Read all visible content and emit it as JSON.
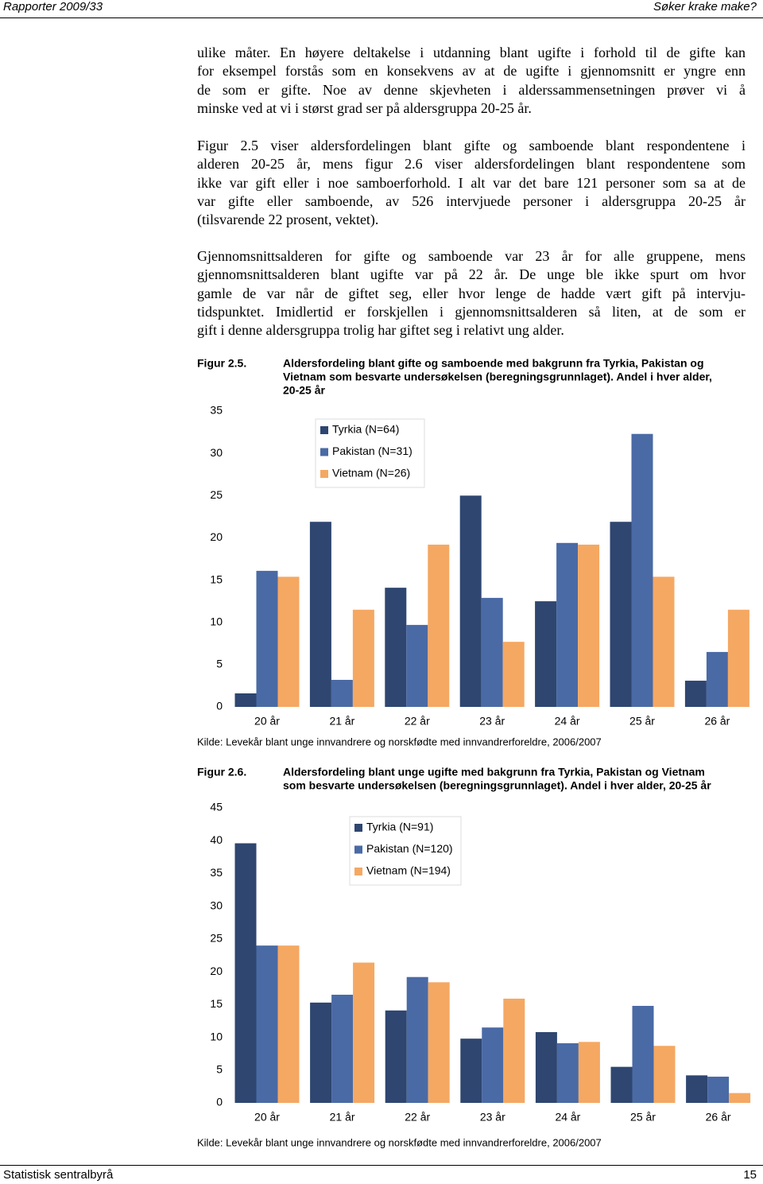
{
  "header": {
    "left": "Rapporter 2009/33",
    "right": "Søker krake make?"
  },
  "paragraphs": [
    [
      "ulike måter. En høyere deltakelse i utdanning blant ugifte i forhold til de gifte kan",
      "for eksempel forstås som en konsekvens av at de ugifte i gjennomsnitt er yngre enn",
      "de som er gifte. Noe av denne skjevheten i alderssammensetningen prøver vi å",
      "minske ved at vi i størst grad ser på aldersgruppa 20-25 år."
    ],
    [
      "Figur 2.5 viser aldersfordelingen blant gifte og samboende blant respondentene i",
      "alderen 20-25 år, mens figur 2.6 viser aldersfordelingen blant respondentene som",
      "ikke var gift eller i noe samboerforhold. I alt var det bare 121 personer som sa at de",
      "var gifte eller samboende, av 526 intervjuede personer i aldersgruppa 20-25 år",
      "(tilsvarende 22 prosent, vektet)."
    ],
    [
      "Gjennomsnittsalderen for gifte og samboende var 23 år for alle gruppene, mens",
      "gjennomsnittsalderen blant ugifte var på 22 år. De unge ble ikke spurt om hvor",
      "gamle de var når de giftet seg, eller hvor lenge de hadde vært gift på intervju-",
      "tidspunktet. Imidlertid er forskjellen i gjennomsnittsalderen så liten, at de som er",
      "gift i denne aldersgruppa trolig har giftet seg i relativt ung alder."
    ]
  ],
  "chart_data": [
    {
      "type": "bar",
      "figure_label": "Figur 2.5.",
      "title": [
        "Aldersfordeling blant gifte og samboende med bakgrunn fra Tyrkia, Pakistan og",
        "Vietnam som besvarte undersøkelsen (beregningsgrunnlaget). Andel i hver alder,",
        "20-25 år"
      ],
      "categories": [
        "20 år",
        "21 år",
        "22 år",
        "23 år",
        "24 år",
        "25 år",
        "26 år"
      ],
      "series": [
        {
          "name": "Tyrkia (N=64)",
          "color": "#2e4670",
          "values": [
            1.6,
            21.9,
            14.1,
            25.0,
            12.5,
            21.9,
            3.1
          ]
        },
        {
          "name": "Pakistan (N=31)",
          "color": "#4a6aa5",
          "values": [
            16.1,
            3.2,
            9.7,
            12.9,
            19.4,
            32.3,
            6.5
          ]
        },
        {
          "name": "Vietnam (N=26)",
          "color": "#f5a862",
          "values": [
            15.4,
            11.5,
            19.2,
            7.7,
            19.2,
            15.4,
            11.5
          ]
        }
      ],
      "ylim": [
        0,
        35
      ],
      "yticks": [
        0,
        5,
        10,
        15,
        20,
        25,
        30,
        35
      ],
      "source": "Kilde: Levekår blant unge innvandrere og norskfødte med innvandrerforeldre, 2006/2007"
    },
    {
      "type": "bar",
      "figure_label": "Figur 2.6.",
      "title": [
        "Aldersfordeling blant unge ugifte med bakgrunn fra Tyrkia, Pakistan og Vietnam",
        "som besvarte undersøkelsen (beregningsgrunnlaget). Andel i hver alder, 20-25 år"
      ],
      "categories": [
        "20 år",
        "21 år",
        "22 år",
        "23 år",
        "24 år",
        "25 år",
        "26 år"
      ],
      "series": [
        {
          "name": "Tyrkia (N=91)",
          "color": "#2e4670",
          "values": [
            39.6,
            15.3,
            14.1,
            9.8,
            10.8,
            5.5,
            4.2
          ]
        },
        {
          "name": "Pakistan (N=120)",
          "color": "#4a6aa5",
          "values": [
            24.0,
            16.5,
            19.2,
            11.5,
            9.1,
            14.8,
            4.0
          ]
        },
        {
          "name": "Vietnam (N=194)",
          "color": "#f5a862",
          "values": [
            24.0,
            21.4,
            18.4,
            15.9,
            9.3,
            8.7,
            1.5
          ]
        }
      ],
      "ylim": [
        0,
        45
      ],
      "yticks": [
        0,
        5,
        10,
        15,
        20,
        25,
        30,
        35,
        40,
        45
      ],
      "source": "Kilde: Levekår blant unge innvandrere og norskfødte med innvandrerforeldre, 2006/2007"
    }
  ],
  "footer": {
    "left": "Statistisk sentralbyrå",
    "page": "15"
  }
}
